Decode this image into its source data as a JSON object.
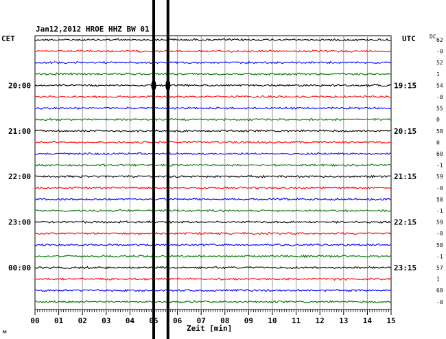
{
  "chart_data": {
    "type": "line",
    "title": "Jan12,2012   HROE HHZ BW 01",
    "left_label": "CET",
    "right_label": "UTC",
    "dc_label": "DC",
    "xlabel": "Zeit [min]",
    "xlim": [
      0,
      15
    ],
    "x_ticks": [
      "00",
      "01",
      "02",
      "03",
      "04",
      "05",
      "06",
      "07",
      "08",
      "09",
      "10",
      "11",
      "12",
      "13",
      "14",
      "15"
    ],
    "left_time_labels": [
      {
        "trace": 4,
        "text": "20:00"
      },
      {
        "trace": 8,
        "text": "21:00"
      },
      {
        "trace": 12,
        "text": "22:00"
      },
      {
        "trace": 16,
        "text": "23:00"
      },
      {
        "trace": 20,
        "text": "00:00"
      }
    ],
    "right_time_labels": [
      {
        "trace": 4,
        "text": "19:15"
      },
      {
        "trace": 8,
        "text": "20:15"
      },
      {
        "trace": 12,
        "text": "21:15"
      },
      {
        "trace": 16,
        "text": "22:15"
      },
      {
        "trace": 20,
        "text": "23:15"
      }
    ],
    "trace_colors": [
      "#000000",
      "#ff0000",
      "#0000ff",
      "#007000"
    ],
    "dc_values": [
      "62",
      "-0",
      "52",
      "1",
      "54",
      "-0",
      "55",
      "0",
      "58",
      "0",
      "60",
      "-1",
      "59",
      "-0",
      "58",
      "-1",
      "59",
      "-0",
      "58",
      "-1",
      "57",
      "1",
      "60",
      "-0"
    ],
    "trace_count": 24,
    "vertical_markers_min": [
      5.0,
      5.6
    ],
    "footer_mark": "м"
  }
}
